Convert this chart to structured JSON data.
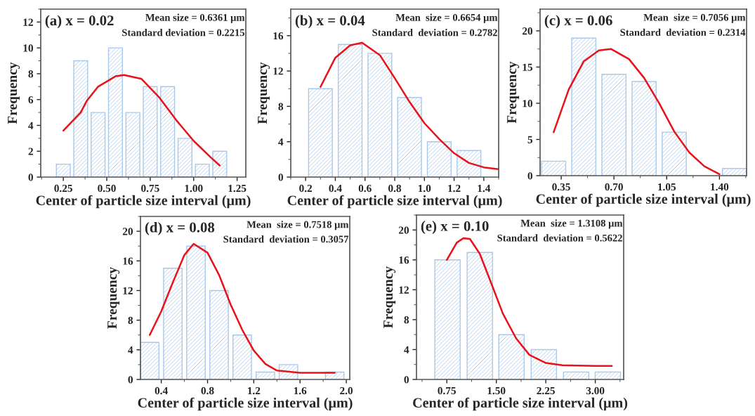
{
  "chart_data": [
    {
      "type": "bar",
      "title": "(a) x = 0.02",
      "annotations": [
        "Mean size = 0.6361 μm",
        "Standard deviation = 0.2215"
      ],
      "xlabel": "Center of particle size interval (μm)",
      "ylabel": "Frequency",
      "x": [
        0.25,
        0.35,
        0.45,
        0.55,
        0.65,
        0.75,
        0.85,
        0.95,
        1.05,
        1.15
      ],
      "xlim": [
        0.12,
        1.3
      ],
      "xticks": [
        {
          "value": 0.25,
          "label": "0.25"
        },
        {
          "value": 0.5,
          "label": "0.50"
        },
        {
          "value": 0.75,
          "label": "0.75"
        },
        {
          "value": 1.0,
          "label": "1.00"
        },
        {
          "value": 1.25,
          "label": "1.25"
        }
      ],
      "ylim": [
        0,
        13
      ],
      "yticks": [
        0,
        2,
        4,
        6,
        8,
        10,
        12
      ],
      "series": [
        {
          "color": "#a9c9ea",
          "values": [
            1,
            9,
            5,
            10,
            5,
            7,
            7,
            3,
            1,
            2
          ]
        },
        {
          "type": "line",
          "color": "#e8121a",
          "x": [
            0.25,
            0.35,
            0.385,
            0.45,
            0.55,
            0.6,
            0.7,
            0.8,
            0.9,
            1.0,
            1.1,
            1.15
          ],
          "values": [
            3.6,
            5.0,
            5.9,
            7.0,
            7.8,
            7.9,
            7.6,
            6.2,
            4.4,
            2.8,
            1.5,
            0.9
          ]
        }
      ]
    },
    {
      "type": "bar",
      "title": "(b) x = 0.04",
      "annotations": [
        "Mean  size = 0.6654 μm",
        "Standard  deviation = 0.2782"
      ],
      "xlabel": "Center of particle size interval (μm)",
      "ylabel": "Frequency",
      "x": [
        0.3,
        0.5,
        0.7,
        0.9,
        1.1,
        1.3
      ],
      "xlim": [
        0.1,
        1.5
      ],
      "xticks": [
        {
          "value": 0.2,
          "label": "0.2"
        },
        {
          "value": 0.4,
          "label": "0.4"
        },
        {
          "value": 0.6,
          "label": "0.6"
        },
        {
          "value": 0.8,
          "label": "0.8"
        },
        {
          "value": 1.0,
          "label": "1.0"
        },
        {
          "value": 1.2,
          "label": "1.2"
        },
        {
          "value": 1.4,
          "label": "1.4"
        }
      ],
      "ylim": [
        0,
        19
      ],
      "yticks": [
        0,
        4,
        8,
        12,
        16
      ],
      "series": [
        {
          "color": "#a9c9ea",
          "values": [
            10,
            15,
            14,
            9,
            4,
            3
          ]
        },
        {
          "type": "line",
          "color": "#e8121a",
          "x": [
            0.3,
            0.4,
            0.5,
            0.58,
            0.7,
            0.8,
            0.9,
            1.0,
            1.1,
            1.2,
            1.3,
            1.4,
            1.5
          ],
          "values": [
            10.2,
            13.5,
            14.9,
            15.2,
            13.8,
            11.2,
            8.5,
            6.1,
            4.3,
            2.7,
            1.6,
            1.1,
            0.9
          ]
        }
      ]
    },
    {
      "type": "bar",
      "title": "(c) x = 0.06",
      "annotations": [
        "Mean  size = 0.7056 μm",
        "Standard  deviation = 0.2314"
      ],
      "xlabel": "Center of particle size interval (μm)",
      "ylabel": "Frequency",
      "x": [
        0.3,
        0.5,
        0.7,
        0.9,
        1.1,
        1.5
      ],
      "xlim": [
        0.21,
        1.58
      ],
      "xticks": [
        {
          "value": 0.35,
          "label": "0.35"
        },
        {
          "value": 0.7,
          "label": "0.70"
        },
        {
          "value": 1.05,
          "label": "1.05"
        },
        {
          "value": 1.4,
          "label": "1.40"
        }
      ],
      "ylim": [
        0,
        23
      ],
      "yticks": [
        0,
        5,
        10,
        15,
        20
      ],
      "series": [
        {
          "color": "#a9c9ea",
          "values": [
            2,
            19,
            14,
            13,
            6,
            1
          ]
        },
        {
          "type": "line",
          "color": "#e8121a",
          "x": [
            0.3,
            0.4,
            0.5,
            0.6,
            0.68,
            0.8,
            0.9,
            1.0,
            1.1,
            1.2,
            1.3,
            1.4
          ],
          "values": [
            6.0,
            11.9,
            15.8,
            17.3,
            17.5,
            16.1,
            13.5,
            10.0,
            6.1,
            3.2,
            1.3,
            0.2
          ]
        }
      ]
    },
    {
      "type": "bar",
      "title": "(d) x = 0.08",
      "annotations": [
        "Mean  size = 0.7518 μm",
        "Standard  deviation = 0.3057"
      ],
      "xlabel": "Center of particle size interval (μm)",
      "ylabel": "Frequency",
      "x": [
        0.3,
        0.5,
        0.7,
        0.9,
        1.1,
        1.3,
        1.5,
        1.9
      ],
      "xlim": [
        0.22,
        2.03
      ],
      "xticks": [
        {
          "value": 0.4,
          "label": "0.4"
        },
        {
          "value": 0.8,
          "label": "0.8"
        },
        {
          "value": 1.2,
          "label": "1.2"
        },
        {
          "value": 1.6,
          "label": "1.6"
        },
        {
          "value": 2.0,
          "label": "2.0"
        }
      ],
      "ylim": [
        0,
        22
      ],
      "yticks": [
        0,
        4,
        8,
        12,
        16,
        20
      ],
      "series": [
        {
          "color": "#a9c9ea",
          "values": [
            5,
            15,
            18,
            12,
            6,
            1,
            2,
            1
          ]
        },
        {
          "type": "line",
          "color": "#e8121a",
          "x": [
            0.3,
            0.4,
            0.5,
            0.6,
            0.68,
            0.8,
            0.9,
            1.0,
            1.1,
            1.2,
            1.3,
            1.4,
            1.6,
            1.9
          ],
          "values": [
            6.0,
            9.2,
            13.1,
            16.8,
            18.3,
            17.1,
            14.1,
            10.1,
            6.7,
            3.9,
            2.1,
            1.2,
            0.9,
            0.9
          ]
        }
      ]
    },
    {
      "type": "bar",
      "title": "(e) x = 0.10",
      "annotations": [
        "Mean  size = 1.3108 μm",
        "Standard  deviation = 0.5622"
      ],
      "xlabel": "Center of particle size interval (μm)",
      "ylabel": "Frequency",
      "x": [
        0.76,
        1.25,
        1.73,
        2.22,
        2.71,
        3.19
      ],
      "xlim": [
        0.29,
        3.43
      ],
      "xticks": [
        {
          "value": 0.75,
          "label": "0.75"
        },
        {
          "value": 1.5,
          "label": "1.50"
        },
        {
          "value": 2.25,
          "label": "2.25"
        },
        {
          "value": 3.0,
          "label": "3.00"
        }
      ],
      "ylim": [
        0,
        22
      ],
      "yticks": [
        0,
        4,
        8,
        12,
        16,
        20
      ],
      "series": [
        {
          "color": "#a9c9ea",
          "values": [
            16,
            17,
            6,
            4,
            1,
            1
          ]
        },
        {
          "type": "line",
          "color": "#e8121a",
          "x": [
            0.75,
            0.9,
            1.0,
            1.1,
            1.25,
            1.4,
            1.6,
            1.8,
            2.0,
            2.25,
            2.5,
            3.0,
            3.25
          ],
          "values": [
            16.0,
            18.3,
            18.9,
            18.8,
            16.8,
            13.4,
            8.8,
            5.5,
            3.3,
            2.2,
            1.9,
            1.8,
            1.8
          ]
        }
      ]
    }
  ]
}
